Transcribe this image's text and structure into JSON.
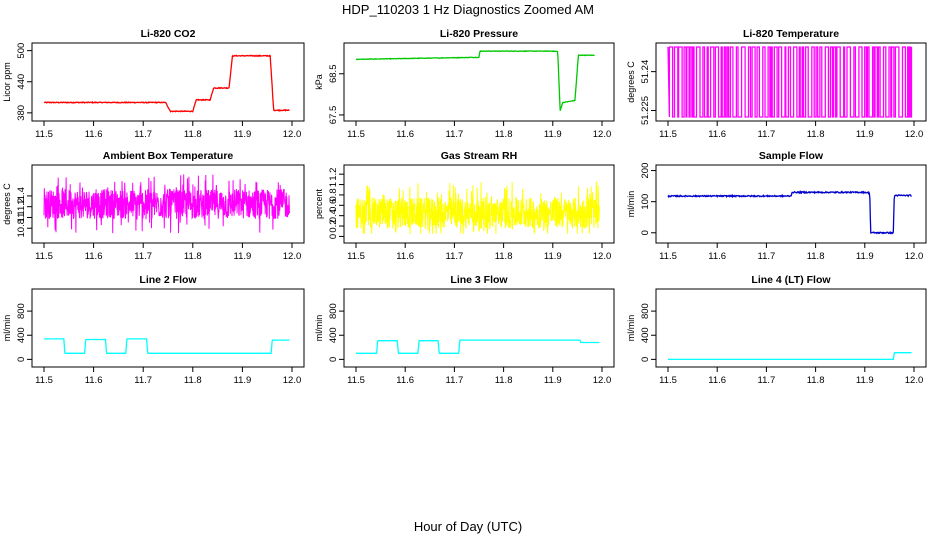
{
  "figure": {
    "title": "HDP_110203  1 Hz Diagnostics Zoomed AM",
    "xlabel": "Hour of Day (UTC)"
  },
  "chart_data": [
    {
      "type": "line",
      "title": "Li-820 CO2",
      "ylabel": "Licor ppm",
      "xlim": [
        11.5,
        12.0
      ],
      "ylim": [
        372,
        507
      ],
      "xticks": [
        11.5,
        11.6,
        11.7,
        11.8,
        11.9,
        12.0
      ],
      "yticks": [
        380,
        440,
        500
      ],
      "color": "#ff0000",
      "noise": 0.8,
      "series": [
        {
          "x": [
            11.5,
            11.745,
            11.755,
            11.8,
            11.807,
            11.835,
            11.842,
            11.873,
            11.88,
            11.956,
            11.963,
            11.995
          ],
          "values": [
            400,
            400,
            383,
            383,
            405,
            405,
            428,
            428,
            490,
            490,
            385,
            385
          ]
        }
      ]
    },
    {
      "type": "line",
      "title": "Li-820 Pressure",
      "ylabel": "kPa",
      "xlim": [
        11.5,
        12.0
      ],
      "ylim": [
        67.45,
        69.15
      ],
      "xticks": [
        11.5,
        11.6,
        11.7,
        11.8,
        11.9,
        12.0
      ],
      "yticks": [
        67.5,
        68.5
      ],
      "color": "#00c800",
      "noise": 0.006,
      "series": [
        {
          "x": [
            11.5,
            11.6,
            11.75,
            11.752,
            11.9,
            11.91,
            11.915,
            11.92,
            11.945,
            11.952,
            11.96,
            11.985
          ],
          "values": [
            68.85,
            68.87,
            68.9,
            69.05,
            69.05,
            69.04,
            67.6,
            67.8,
            67.85,
            68.95,
            68.95,
            68.95
          ]
        }
      ]
    },
    {
      "type": "line",
      "title": "Li-820 Temperature",
      "ylabel": "degrees C",
      "xlim": [
        11.5,
        12.0
      ],
      "ylim": [
        51.2225,
        51.2495
      ],
      "xticks": [
        11.5,
        11.6,
        11.7,
        11.8,
        11.9,
        12.0
      ],
      "yticks": [
        51.225,
        51.24
      ],
      "color": "#ff00ff",
      "levels": [
        51.2225,
        51.2495
      ]
    },
    {
      "type": "line",
      "title": "Ambient Box Temperature",
      "ylabel": "degrees C",
      "xlim": [
        11.5,
        12.0
      ],
      "ylim": [
        10.6,
        11.9
      ],
      "xticks": [
        11.5,
        11.6,
        11.7,
        11.8,
        11.9,
        12.0
      ],
      "yticks": [
        10.8,
        11.0,
        11.2,
        11.4
      ],
      "color": "#ff00ff",
      "mean": 11.25,
      "spread": [
        10.7,
        11.8
      ]
    },
    {
      "type": "line",
      "title": "Gas Stream RH",
      "ylabel": "percent",
      "xlim": [
        11.5,
        12.0
      ],
      "ylim": [
        -0.05,
        1.3
      ],
      "xticks": [
        11.5,
        11.6,
        11.7,
        11.8,
        11.9,
        12.0
      ],
      "yticks": [
        0.0,
        0.2,
        0.4,
        0.6,
        0.8,
        1.0,
        1.2
      ],
      "color": "#ffff00",
      "mean": 0.45,
      "spread": [
        0.05,
        1.25
      ]
    },
    {
      "type": "line",
      "title": "Sample Flow",
      "ylabel": "ml/min",
      "xlim": [
        11.5,
        12.0
      ],
      "ylim": [
        -20,
        205
      ],
      "xticks": [
        11.5,
        11.6,
        11.7,
        11.8,
        11.9,
        12.0
      ],
      "yticks": [
        0,
        100,
        200
      ],
      "color": "#0000cc",
      "noise": 2,
      "series": [
        {
          "x": [
            11.5,
            11.75,
            11.752,
            11.9,
            11.91,
            11.912,
            11.95,
            11.958,
            11.96,
            11.995
          ],
          "values": [
            118,
            118,
            130,
            130,
            128,
            0,
            0,
            0,
            120,
            120
          ]
        }
      ]
    },
    {
      "type": "line",
      "title": "Line 2 Flow",
      "ylabel": "ml/min",
      "xlim": [
        11.5,
        12.0
      ],
      "ylim": [
        -60,
        1100
      ],
      "xticks": [
        11.5,
        11.6,
        11.7,
        11.8,
        11.9,
        12.0
      ],
      "yticks": [
        0,
        400,
        800
      ],
      "color": "#00ffff",
      "noise": 0,
      "series": [
        {
          "x": [
            11.5,
            11.54,
            11.542,
            11.582,
            11.584,
            11.624,
            11.626,
            11.665,
            11.667,
            11.707,
            11.709,
            11.958,
            11.96,
            11.995
          ],
          "values": [
            340,
            340,
            100,
            100,
            330,
            330,
            100,
            100,
            340,
            340,
            100,
            100,
            320,
            320
          ]
        }
      ]
    },
    {
      "type": "line",
      "title": "Line 3 Flow",
      "ylabel": "ml/min",
      "xlim": [
        11.5,
        12.0
      ],
      "ylim": [
        -60,
        1100
      ],
      "xticks": [
        11.5,
        11.6,
        11.7,
        11.8,
        11.9,
        12.0
      ],
      "yticks": [
        0,
        400,
        800
      ],
      "color": "#00ffff",
      "noise": 0,
      "series": [
        {
          "x": [
            11.5,
            11.542,
            11.544,
            11.584,
            11.586,
            11.626,
            11.628,
            11.667,
            11.669,
            11.709,
            11.711,
            11.955,
            11.957,
            11.995
          ],
          "values": [
            100,
            100,
            310,
            310,
            100,
            100,
            310,
            310,
            100,
            100,
            320,
            320,
            280,
            280
          ]
        }
      ]
    },
    {
      "type": "line",
      "title": "Line 4 (LT) Flow",
      "ylabel": "ml/min",
      "xlim": [
        11.5,
        12.0
      ],
      "ylim": [
        -60,
        1100
      ],
      "xticks": [
        11.5,
        11.6,
        11.7,
        11.8,
        11.9,
        12.0
      ],
      "yticks": [
        0,
        400,
        800
      ],
      "color": "#00ffff",
      "noise": 0,
      "series": [
        {
          "x": [
            11.5,
            11.958,
            11.96,
            11.995
          ],
          "values": [
            0,
            0,
            110,
            110
          ]
        }
      ]
    }
  ]
}
